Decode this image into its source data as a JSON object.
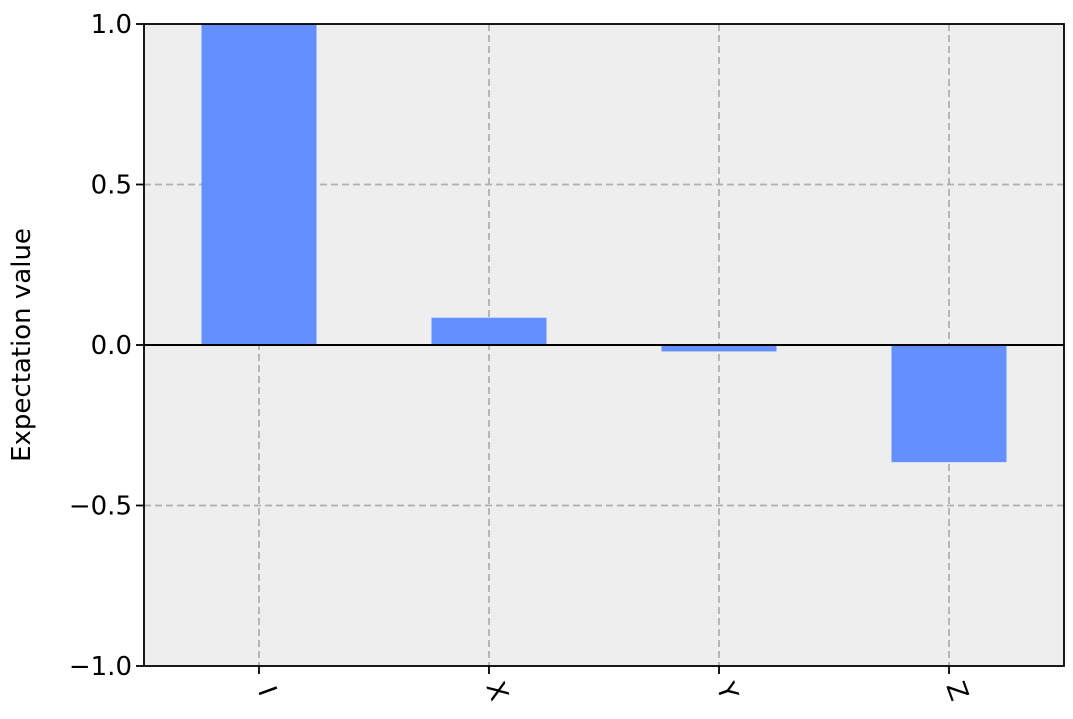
{
  "chart_data": {
    "type": "bar",
    "title": "",
    "xlabel": "",
    "ylabel": "Expectation value",
    "categories": [
      "I",
      "X",
      "Y",
      "Z"
    ],
    "values": [
      1.0,
      0.085,
      -0.02,
      -0.365
    ],
    "ylim": [
      -1.0,
      1.0
    ],
    "yticks": [
      1.0,
      0.5,
      0.0,
      -0.5,
      -1.0
    ],
    "ytick_labels": [
      "1.0",
      "0.5",
      "0.0",
      "−0.5",
      "−1.0"
    ],
    "grid": true,
    "legend": "none",
    "colors": {
      "bar": "#648fff",
      "plot_background": "#eeeeee",
      "grid": "#b0b0b0",
      "zero_line": "#000000"
    }
  }
}
